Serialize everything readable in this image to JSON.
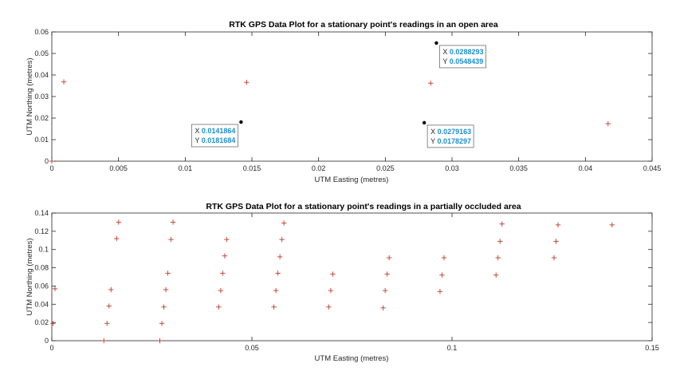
{
  "chart_data": [
    {
      "type": "scatter",
      "title": "RTK GPS Data Plot for a stationary point's readings in an open area",
      "xlabel": "UTM Easting (metres)",
      "ylabel": "UTM Northing (metres)",
      "xlim": [
        0,
        0.045
      ],
      "ylim": [
        0,
        0.06
      ],
      "xticks": [
        0,
        0.005,
        0.01,
        0.015,
        0.02,
        0.025,
        0.03,
        0.035,
        0.04,
        0.045
      ],
      "xtick_labels": [
        "0",
        "0.005",
        "0.01",
        "0.015",
        "0.02",
        "0.025",
        "0.03",
        "0.035",
        "0.04",
        "0.045"
      ],
      "yticks": [
        0,
        0.01,
        0.02,
        0.03,
        0.04,
        0.05,
        0.06
      ],
      "ytick_labels": [
        "0",
        "0.01",
        "0.02",
        "0.03",
        "0.04",
        "0.05",
        "0.06"
      ],
      "marker_color": "#c0392b",
      "points": [
        {
          "x": 0,
          "y": 0
        },
        {
          "x": 0.0009,
          "y": 0.0368
        },
        {
          "x": 0.0146,
          "y": 0.0366
        },
        {
          "x": 0.0284,
          "y": 0.0362
        },
        {
          "x": 0.0417,
          "y": 0.0174
        }
      ],
      "datatips": [
        {
          "x": 0.0141864,
          "y": 0.0181684,
          "x_label": "X",
          "y_label": "Y",
          "x_text": "0.0141864",
          "y_text": "0.0181684",
          "placement": "below-left"
        },
        {
          "x": 0.0279163,
          "y": 0.0178297,
          "x_label": "X",
          "y_label": "Y",
          "x_text": "0.0279163",
          "y_text": "0.0178297",
          "placement": "below-right"
        },
        {
          "x": 0.0288293,
          "y": 0.0548439,
          "x_label": "X",
          "y_label": "Y",
          "x_text": "0.0288293",
          "y_text": "0.0548439",
          "placement": "below-right"
        }
      ]
    },
    {
      "type": "scatter",
      "title": "RTK GPS Data Plot for a stationary point's readings in a partially occluded area",
      "xlabel": "UTM Easting (metres)",
      "ylabel": "UTM Northing (metres)",
      "xlim": [
        0,
        0.15
      ],
      "ylim": [
        0,
        0.14
      ],
      "xticks": [
        0,
        0.05,
        0.1,
        0.15
      ],
      "xtick_labels": [
        "0",
        "0.05",
        "0.1",
        "0.15"
      ],
      "yticks": [
        0,
        0.02,
        0.04,
        0.06,
        0.08,
        0.1,
        0.12,
        0.14
      ],
      "ytick_labels": [
        "0",
        "0.02",
        "0.04",
        "0.06",
        "0.08",
        "0.1",
        "0.12",
        "0.14"
      ],
      "marker_color": "#c0392b",
      "points": [
        {
          "x": 0.0003,
          "y": 0.019
        },
        {
          "x": 0.0008,
          "y": 0.057
        },
        {
          "x": 0.013,
          "y": 0
        },
        {
          "x": 0.0138,
          "y": 0.019
        },
        {
          "x": 0.0143,
          "y": 0.038
        },
        {
          "x": 0.0148,
          "y": 0.056
        },
        {
          "x": 0.0162,
          "y": 0.112
        },
        {
          "x": 0.0167,
          "y": 0.13
        },
        {
          "x": 0.027,
          "y": 0
        },
        {
          "x": 0.0275,
          "y": 0.019
        },
        {
          "x": 0.028,
          "y": 0.037
        },
        {
          "x": 0.0285,
          "y": 0.056
        },
        {
          "x": 0.029,
          "y": 0.074
        },
        {
          "x": 0.0298,
          "y": 0.111
        },
        {
          "x": 0.0303,
          "y": 0.13
        },
        {
          "x": 0.0417,
          "y": 0.037
        },
        {
          "x": 0.0422,
          "y": 0.055
        },
        {
          "x": 0.0427,
          "y": 0.074
        },
        {
          "x": 0.0432,
          "y": 0.093
        },
        {
          "x": 0.0437,
          "y": 0.111
        },
        {
          "x": 0.0555,
          "y": 0.037
        },
        {
          "x": 0.056,
          "y": 0.055
        },
        {
          "x": 0.0565,
          "y": 0.074
        },
        {
          "x": 0.057,
          "y": 0.092
        },
        {
          "x": 0.0575,
          "y": 0.111
        },
        {
          "x": 0.058,
          "y": 0.129
        },
        {
          "x": 0.0692,
          "y": 0.037
        },
        {
          "x": 0.0697,
          "y": 0.055
        },
        {
          "x": 0.0702,
          "y": 0.073
        },
        {
          "x": 0.0828,
          "y": 0.036
        },
        {
          "x": 0.0833,
          "y": 0.055
        },
        {
          "x": 0.0838,
          "y": 0.073
        },
        {
          "x": 0.0843,
          "y": 0.091
        },
        {
          "x": 0.097,
          "y": 0.054
        },
        {
          "x": 0.0975,
          "y": 0.072
        },
        {
          "x": 0.098,
          "y": 0.091
        },
        {
          "x": 0.111,
          "y": 0.072
        },
        {
          "x": 0.1115,
          "y": 0.091
        },
        {
          "x": 0.112,
          "y": 0.109
        },
        {
          "x": 0.1125,
          "y": 0.128
        },
        {
          "x": 0.1255,
          "y": 0.091
        },
        {
          "x": 0.126,
          "y": 0.109
        },
        {
          "x": 0.1265,
          "y": 0.127
        },
        {
          "x": 0.14,
          "y": 0.127
        }
      ]
    }
  ]
}
